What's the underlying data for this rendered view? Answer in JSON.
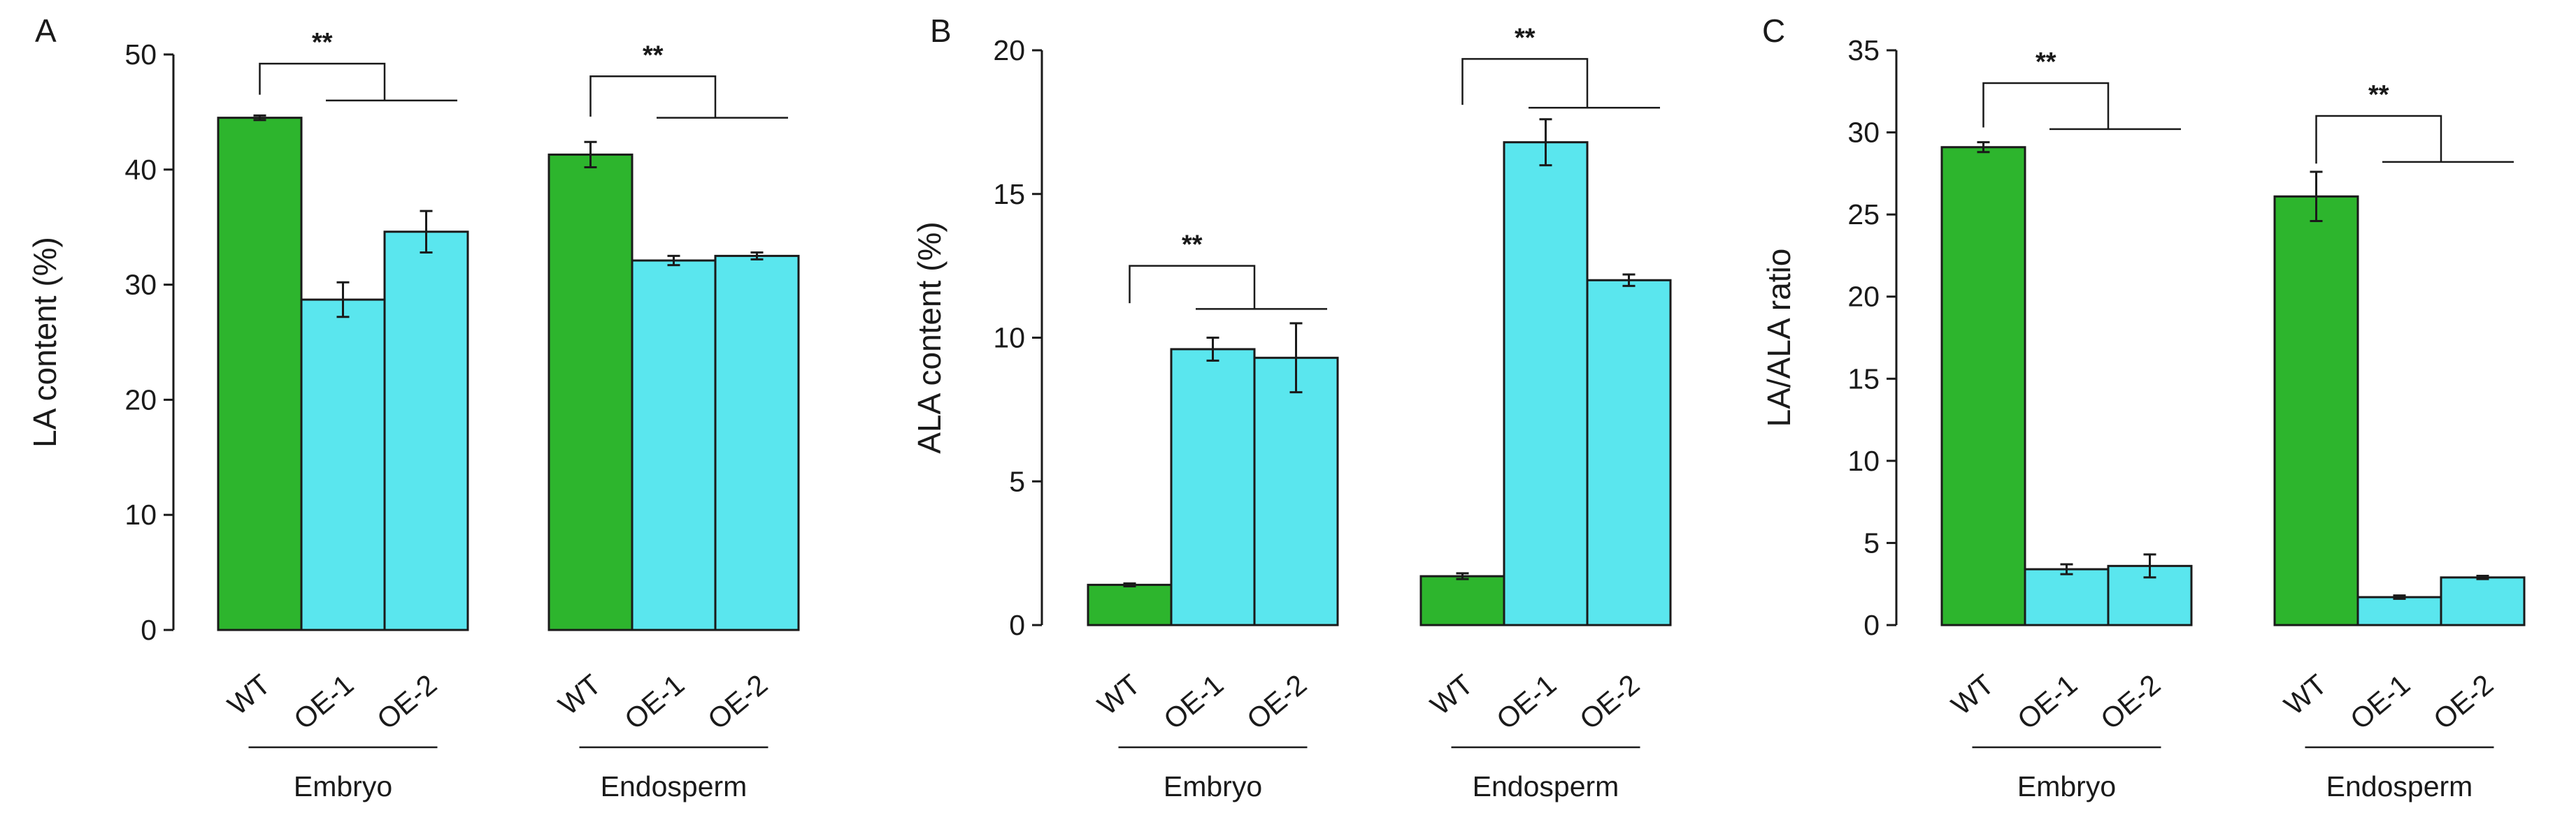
{
  "colors": {
    "wt": "#2db52d",
    "oe": "#5ae6ee",
    "ink": "#1a1a1a"
  },
  "chart_data": [
    {
      "type": "bar",
      "panel": "A",
      "ylabel": "LA content (%)",
      "xlabel": "",
      "ylim": [
        0,
        50
      ],
      "yticks": [
        0,
        10,
        20,
        30,
        40,
        50
      ],
      "groups": [
        "Embryo",
        "Endosperm"
      ],
      "categories": [
        "WT",
        "OE-1",
        "OE-2"
      ],
      "series": [
        {
          "group": "Embryo",
          "values": [
            44.5,
            28.7,
            34.6
          ],
          "errors": [
            0.2,
            1.5,
            1.8
          ]
        },
        {
          "group": "Endosperm",
          "values": [
            41.3,
            32.1,
            32.5
          ],
          "errors": [
            1.1,
            0.4,
            0.3
          ]
        }
      ],
      "significance": [
        {
          "group": "Embryo",
          "label": "**",
          "top": 49.2,
          "bottom": 46.5,
          "right": 46.0
        },
        {
          "group": "Endosperm",
          "label": "**",
          "top": 48.1,
          "bottom": 44.6,
          "right": 44.5
        }
      ]
    },
    {
      "type": "bar",
      "panel": "B",
      "ylabel": "ALA content (%)",
      "xlabel": "",
      "ylim": [
        0,
        20
      ],
      "yticks": [
        0,
        5,
        10,
        15,
        20
      ],
      "groups": [
        "Embryo",
        "Endosperm"
      ],
      "categories": [
        "WT",
        "OE-1",
        "OE-2"
      ],
      "series": [
        {
          "group": "Embryo",
          "values": [
            1.4,
            9.6,
            9.3
          ],
          "errors": [
            0.05,
            0.4,
            1.2
          ]
        },
        {
          "group": "Endosperm",
          "values": [
            1.7,
            16.8,
            12.0
          ],
          "errors": [
            0.1,
            0.8,
            0.2
          ]
        }
      ],
      "significance": [
        {
          "group": "Embryo",
          "label": "**",
          "top": 12.5,
          "bottom": 11.2,
          "right": 11.0
        },
        {
          "group": "Endosperm",
          "label": "**",
          "top": 19.7,
          "bottom": 18.1,
          "right": 18.0
        }
      ]
    },
    {
      "type": "bar",
      "panel": "C",
      "ylabel": "LA/ALA ratio",
      "xlabel": "",
      "ylim": [
        0,
        35
      ],
      "yticks": [
        0,
        5,
        10,
        15,
        20,
        25,
        30,
        35
      ],
      "groups": [
        "Embryo",
        "Endosperm"
      ],
      "categories": [
        "WT",
        "OE-1",
        "OE-2"
      ],
      "series": [
        {
          "group": "Embryo",
          "values": [
            29.1,
            3.4,
            3.6
          ],
          "errors": [
            0.3,
            0.3,
            0.7
          ]
        },
        {
          "group": "Endosperm",
          "values": [
            26.1,
            1.7,
            2.9
          ],
          "errors": [
            1.5,
            0.1,
            0.1
          ]
        }
      ],
      "significance": [
        {
          "group": "Embryo",
          "label": "**",
          "top": 33.0,
          "bottom": 30.3,
          "right": 30.2
        },
        {
          "group": "Endosperm",
          "label": "**",
          "top": 31.0,
          "bottom": 28.1,
          "right": 28.2
        }
      ]
    }
  ]
}
